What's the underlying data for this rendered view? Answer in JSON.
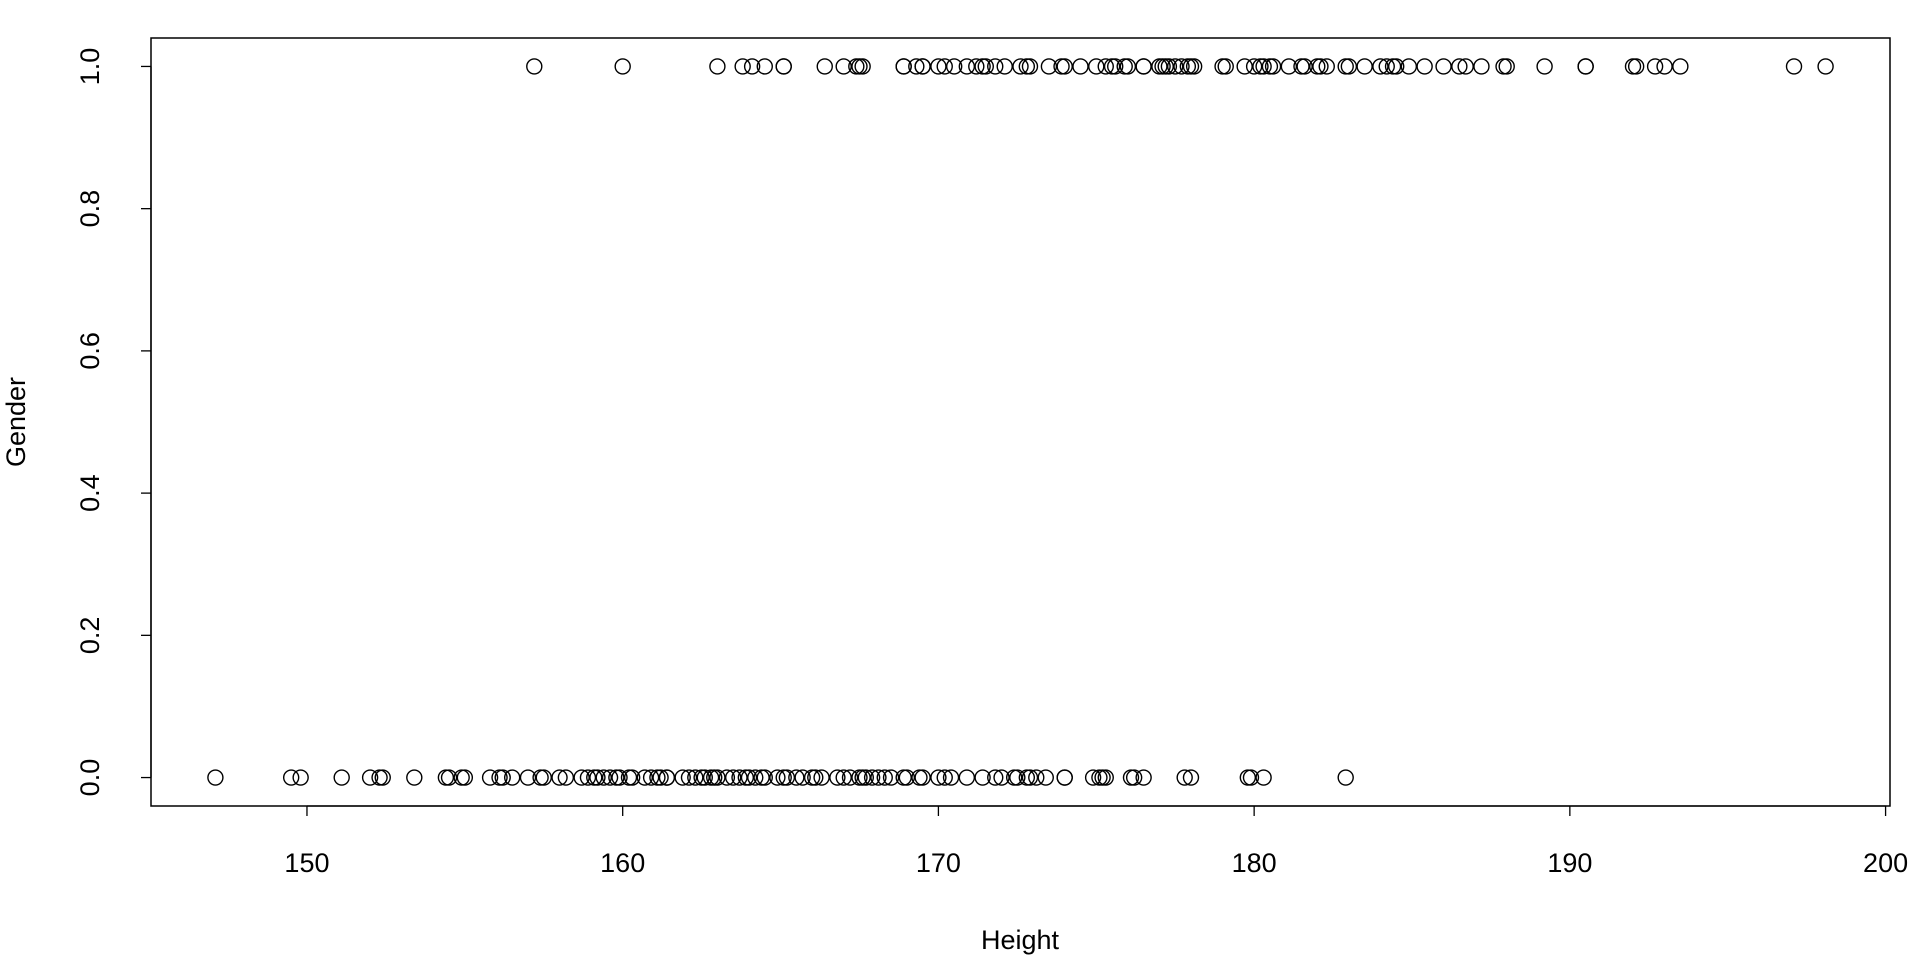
{
  "chart_data": {
    "type": "scatter",
    "x_label": "Height",
    "y_label": "Gender",
    "color": "#000000",
    "x": [
      157.2,
      160.0,
      163.0,
      163.8,
      164.1,
      164.5,
      165.1,
      165.1,
      166.4,
      167.0,
      167.4,
      167.5,
      167.6,
      168.9,
      168.9,
      169.3,
      169.5,
      169.5,
      170.0,
      170.2,
      170.5,
      170.9,
      171.2,
      171.4,
      171.5,
      171.8,
      172.1,
      172.6,
      172.8,
      172.9,
      173.5,
      173.9,
      174.0,
      174.5,
      175.0,
      175.3,
      175.5,
      175.6,
      175.9,
      176.0,
      176.5,
      176.5,
      177.0,
      177.1,
      177.2,
      177.3,
      177.5,
      177.7,
      177.9,
      178.0,
      178.1,
      179.0,
      179.1,
      179.7,
      180.0,
      180.2,
      180.3,
      180.5,
      180.6,
      181.1,
      181.5,
      181.6,
      182.0,
      182.1,
      182.3,
      182.9,
      183.0,
      183.5,
      184.0,
      184.2,
      184.4,
      184.5,
      184.9,
      185.4,
      186.0,
      186.5,
      186.7,
      187.2,
      187.9,
      188.0,
      189.2,
      190.5,
      190.5,
      192.0,
      192.1,
      192.7,
      193.0,
      193.5,
      197.1,
      198.1,
      147.1,
      149.5,
      149.8,
      151.1,
      152.0,
      152.3,
      152.4,
      153.4,
      154.4,
      154.5,
      154.9,
      155.0,
      155.8,
      156.1,
      156.2,
      156.5,
      157.0,
      157.4,
      157.5,
      158.0,
      158.2,
      158.7,
      158.9,
      159.1,
      159.2,
      159.4,
      159.6,
      159.8,
      159.9,
      160.2,
      160.3,
      160.7,
      160.9,
      161.1,
      161.2,
      161.4,
      161.4,
      161.9,
      162.1,
      162.3,
      162.5,
      162.6,
      162.8,
      162.9,
      163.0,
      163.3,
      163.5,
      163.7,
      163.9,
      164.0,
      164.2,
      164.4,
      164.5,
      164.9,
      165.1,
      165.2,
      165.5,
      165.7,
      166.0,
      166.1,
      166.3,
      166.8,
      167.0,
      167.2,
      167.5,
      167.6,
      167.7,
      167.9,
      168.1,
      168.3,
      168.5,
      168.9,
      169.0,
      169.4,
      169.5,
      170.0,
      170.2,
      170.4,
      170.9,
      171.4,
      171.8,
      172.0,
      172.4,
      172.5,
      172.8,
      172.9,
      173.1,
      173.4,
      174.0,
      174.0,
      174.9,
      175.1,
      175.2,
      175.3,
      176.1,
      176.2,
      176.5,
      177.8,
      178.0,
      179.8,
      179.9,
      180.3,
      182.9
    ],
    "values": [
      1,
      1,
      1,
      1,
      1,
      1,
      1,
      1,
      1,
      1,
      1,
      1,
      1,
      1,
      1,
      1,
      1,
      1,
      1,
      1,
      1,
      1,
      1,
      1,
      1,
      1,
      1,
      1,
      1,
      1,
      1,
      1,
      1,
      1,
      1,
      1,
      1,
      1,
      1,
      1,
      1,
      1,
      1,
      1,
      1,
      1,
      1,
      1,
      1,
      1,
      1,
      1,
      1,
      1,
      1,
      1,
      1,
      1,
      1,
      1,
      1,
      1,
      1,
      1,
      1,
      1,
      1,
      1,
      1,
      1,
      1,
      1,
      1,
      1,
      1,
      1,
      1,
      1,
      1,
      1,
      1,
      1,
      1,
      1,
      1,
      1,
      1,
      1,
      1,
      1,
      0,
      0,
      0,
      0,
      0,
      0,
      0,
      0,
      0,
      0,
      0,
      0,
      0,
      0,
      0,
      0,
      0,
      0,
      0,
      0,
      0,
      0,
      0,
      0,
      0,
      0,
      0,
      0,
      0,
      0,
      0,
      0,
      0,
      0,
      0,
      0,
      0,
      0,
      0,
      0,
      0,
      0,
      0,
      0,
      0,
      0,
      0,
      0,
      0,
      0,
      0,
      0,
      0,
      0,
      0,
      0,
      0,
      0,
      0,
      0,
      0,
      0,
      0,
      0,
      0,
      0,
      0,
      0,
      0,
      0,
      0,
      0,
      0,
      0,
      0,
      0,
      0,
      0,
      0,
      0,
      0,
      0,
      0,
      0,
      0,
      0,
      0,
      0,
      0,
      0,
      0,
      0,
      0,
      0,
      0,
      0,
      0,
      0,
      0,
      0,
      0,
      0,
      0
    ],
    "xlim": [
      145.06,
      200.14
    ],
    "xticks": [
      150,
      160,
      170,
      180,
      190,
      200
    ],
    "ylim": [
      -0.04,
      1.04
    ],
    "yticks": [
      {
        "value": 0,
        "label": "0.0"
      },
      0.2,
      0.4,
      0.6,
      0.8,
      {
        "value": 1,
        "label": "1.0"
      }
    ]
  }
}
